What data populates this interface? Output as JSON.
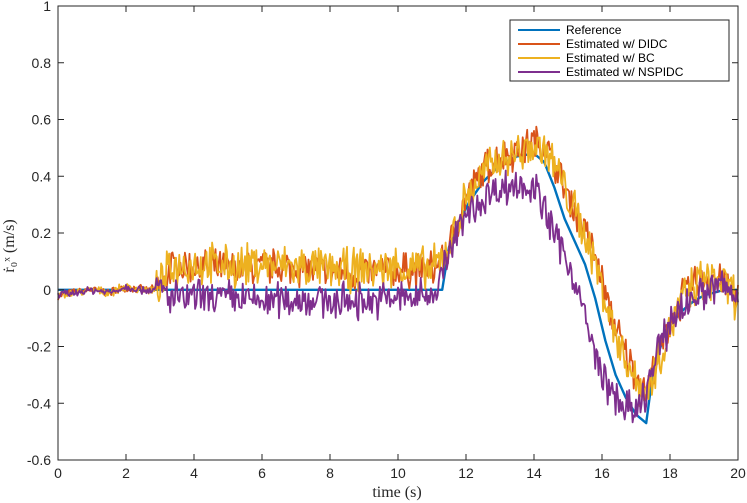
{
  "chart_data": {
    "type": "line",
    "title": "",
    "xlabel": "time (s)",
    "ylabel": "ṙ₀ˣ (m/s)",
    "xlim": [
      0,
      20
    ],
    "ylim": [
      -0.6,
      1
    ],
    "xticks": [
      0,
      2,
      4,
      6,
      8,
      10,
      12,
      14,
      16,
      18,
      20
    ],
    "yticks": [
      -0.6,
      -0.4,
      -0.2,
      0,
      0.2,
      0.4,
      0.6,
      0.8,
      1
    ],
    "xtick_labels": [
      "0",
      "2",
      "4",
      "6",
      "8",
      "10",
      "12",
      "14",
      "16",
      "18",
      "20"
    ],
    "ytick_labels": [
      "-0.6",
      "-0.4",
      "-0.2",
      "0",
      "0.2",
      "0.4",
      "0.6",
      "0.8",
      "1"
    ],
    "grid": false,
    "legend_position": "top-right",
    "series": [
      {
        "name": "Reference",
        "color": "#0072bd",
        "x": [
          0,
          11.3,
          11.5,
          11.8,
          12.1,
          12.5,
          13.0,
          13.5,
          14.0,
          14.3,
          14.6,
          14.9,
          15.2,
          15.5,
          15.8,
          16.1,
          16.4,
          16.7,
          17.0,
          17.3,
          17.5,
          17.8,
          18.1,
          18.4,
          18.7,
          19.0,
          19.3,
          19.6,
          20.0
        ],
        "y": [
          0,
          0,
          0.15,
          0.24,
          0.31,
          0.38,
          0.44,
          0.47,
          0.48,
          0.45,
          0.36,
          0.25,
          0.17,
          0.09,
          -0.03,
          -0.18,
          -0.3,
          -0.38,
          -0.44,
          -0.47,
          -0.29,
          -0.17,
          -0.11,
          -0.07,
          -0.04,
          -0.02,
          -0.01,
          0.0,
          0.0
        ]
      },
      {
        "name": "Estimated w/ DIDC",
        "color": "#d95319",
        "x": [
          0,
          0.5,
          1,
          1.5,
          2,
          2.5,
          2.9,
          3.1,
          3.3,
          4,
          5,
          6,
          7,
          8,
          9,
          10,
          11,
          11.3,
          11.6,
          12,
          12.5,
          13,
          13.5,
          14,
          14.3,
          14.6,
          15,
          15.4,
          15.8,
          16.2,
          16.6,
          17,
          17.3,
          17.6,
          18,
          18.4,
          18.8,
          19.2,
          19.5,
          19.8,
          20
        ],
        "y": [
          -0.02,
          -0.01,
          0.0,
          -0.01,
          0.01,
          0.0,
          0.0,
          0.02,
          0.08,
          0.08,
          0.07,
          0.08,
          0.08,
          0.06,
          0.06,
          0.07,
          0.07,
          0.1,
          0.18,
          0.32,
          0.42,
          0.47,
          0.49,
          0.52,
          0.51,
          0.44,
          0.33,
          0.24,
          0.12,
          -0.06,
          -0.2,
          -0.3,
          -0.36,
          -0.25,
          -0.12,
          -0.02,
          0.03,
          0.05,
          0.04,
          -0.01,
          -0.03
        ],
        "noise": 0.055
      },
      {
        "name": "Estimated w/ BC",
        "color": "#edb120",
        "x": [
          0,
          0.5,
          1,
          1.5,
          2,
          2.5,
          2.9,
          3.1,
          3.3,
          4,
          5,
          6,
          7,
          8,
          9,
          10,
          11,
          11.3,
          11.6,
          12,
          12.5,
          13,
          13.5,
          14,
          14.3,
          14.6,
          15,
          15.4,
          15.8,
          16.2,
          16.6,
          17,
          17.3,
          17.6,
          18,
          18.4,
          18.8,
          19.2,
          19.5,
          19.8,
          20
        ],
        "y": [
          -0.02,
          -0.01,
          0.0,
          -0.01,
          0.01,
          0.0,
          0.0,
          0.02,
          0.08,
          0.09,
          0.08,
          0.09,
          0.08,
          0.07,
          0.07,
          0.08,
          0.07,
          0.11,
          0.19,
          0.32,
          0.41,
          0.46,
          0.48,
          0.5,
          0.5,
          0.44,
          0.33,
          0.22,
          0.1,
          -0.08,
          -0.22,
          -0.32,
          -0.36,
          -0.26,
          -0.13,
          -0.03,
          0.02,
          0.04,
          0.03,
          -0.01,
          -0.03
        ],
        "noise": 0.065
      },
      {
        "name": "Estimated w/ NSPIDC",
        "color": "#7e2f8e",
        "x": [
          0,
          0.5,
          1,
          1.5,
          2,
          2.5,
          2.9,
          3.1,
          3.3,
          4,
          5,
          6,
          7,
          8,
          9,
          10,
          11,
          11.3,
          11.6,
          12,
          12.5,
          13,
          13.5,
          14,
          14.3,
          14.6,
          15,
          15.4,
          15.8,
          16.2,
          16.6,
          17,
          17.3,
          17.6,
          18,
          18.4,
          18.8,
          19.2,
          19.5,
          19.8,
          20
        ],
        "y": [
          -0.02,
          -0.01,
          0.0,
          -0.01,
          0.01,
          0.0,
          0.0,
          0.0,
          -0.03,
          -0.03,
          -0.03,
          -0.04,
          -0.03,
          -0.04,
          -0.04,
          -0.03,
          -0.02,
          0.06,
          0.16,
          0.26,
          0.32,
          0.36,
          0.37,
          0.36,
          0.28,
          0.2,
          0.1,
          -0.05,
          -0.24,
          -0.35,
          -0.41,
          -0.44,
          -0.36,
          -0.24,
          -0.11,
          -0.05,
          -0.02,
          0.0,
          0.02,
          -0.01,
          -0.03
        ],
        "noise": 0.055
      }
    ]
  }
}
